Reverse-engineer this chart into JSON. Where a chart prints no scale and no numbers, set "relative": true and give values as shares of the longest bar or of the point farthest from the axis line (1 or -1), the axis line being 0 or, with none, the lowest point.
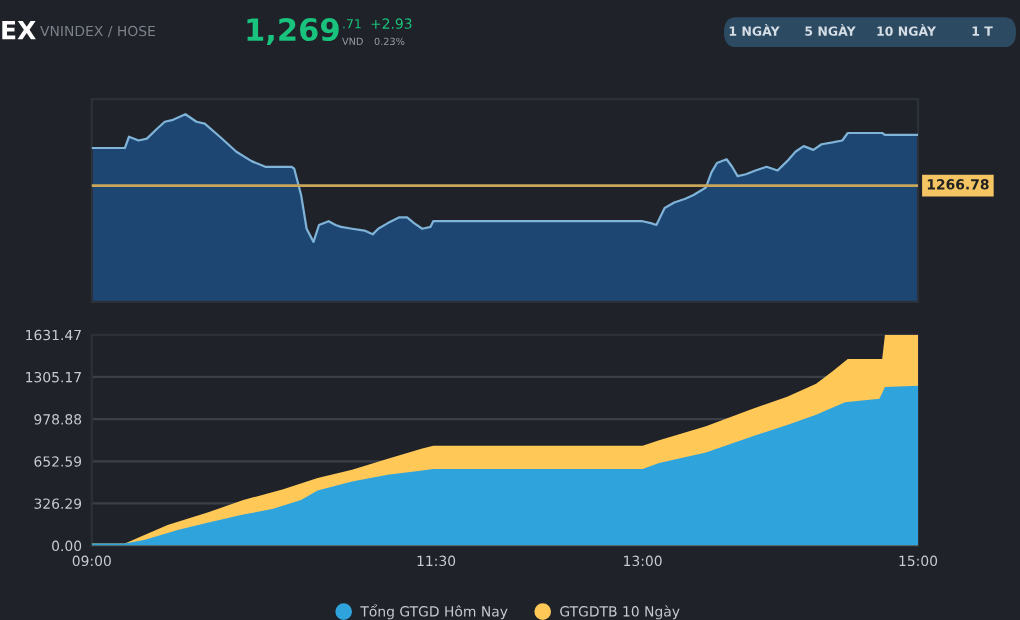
{
  "chart_data": [
    {
      "type": "other",
      "title": "EX",
      "subtitle": "VNINDEX / HOSE",
      "annotations": [
        "1,269",
        ".71",
        "VND",
        "+2.93",
        "0.23%",
        "1 NGÀY",
        "5 NGÀY",
        "10 NGÀY",
        "1 T"
      ]
    },
    {
      "type": "area",
      "relative": true,
      "xlim": [
        9,
        15
      ],
      "grid": false,
      "legend": false,
      "annotations": [
        "1266.78"
      ],
      "series": [
        {
          "color": "#7fb3d8",
          "x": [
            9.0,
            9.24,
            9.27,
            9.34,
            9.4,
            9.47,
            9.53,
            9.59,
            9.68,
            9.76,
            9.82,
            9.93,
            10.05,
            10.16,
            10.26,
            10.37,
            10.45,
            10.47,
            10.52,
            10.56,
            10.61,
            10.65,
            10.72,
            10.77,
            10.81,
            10.89,
            10.98,
            11.04,
            11.08,
            11.15,
            11.23,
            11.29,
            11.34,
            11.4,
            11.46,
            11.48,
            13.0,
            13.06,
            13.1,
            13.16,
            13.23,
            13.31,
            13.37,
            13.46,
            13.5,
            13.54,
            13.61,
            13.65,
            13.69,
            13.75,
            13.82,
            13.9,
            13.98,
            14.05,
            14.11,
            14.17,
            14.24,
            14.3,
            14.38,
            14.45,
            14.49,
            14.74,
            14.76,
            15.0
          ],
          "values": [
            0.82,
            0.82,
            0.88,
            0.86,
            0.87,
            0.92,
            0.96,
            0.97,
            1.0,
            0.96,
            0.95,
            0.88,
            0.8,
            0.75,
            0.72,
            0.72,
            0.72,
            0.71,
            0.57,
            0.39,
            0.32,
            0.41,
            0.43,
            0.41,
            0.4,
            0.39,
            0.38,
            0.36,
            0.39,
            0.42,
            0.45,
            0.45,
            0.42,
            0.39,
            0.4,
            0.43,
            0.43,
            0.42,
            0.41,
            0.5,
            0.53,
            0.55,
            0.57,
            0.61,
            0.69,
            0.74,
            0.76,
            0.72,
            0.67,
            0.68,
            0.7,
            0.72,
            0.7,
            0.75,
            0.8,
            0.83,
            0.81,
            0.84,
            0.85,
            0.86,
            0.9,
            0.9,
            0.89,
            0.89
          ]
        }
      ],
      "ref_lines": [
        {
          "axis": "y",
          "value": 0.62,
          "color": "#c9a75a"
        }
      ]
    },
    {
      "type": "area",
      "xlim": [
        9,
        15
      ],
      "ylim": [
        0,
        1631.47
      ],
      "grid": "y",
      "legend": "bottom",
      "xticks": [
        {
          "value": 9,
          "label": "09:00"
        },
        {
          "value": 11.5,
          "label": "11:30"
        },
        {
          "value": 13,
          "label": "13:00"
        },
        {
          "value": 15,
          "label": "15:00"
        }
      ],
      "yticks": [
        {
          "value": 0,
          "label": "0.00"
        },
        326.29,
        652.59,
        978.88,
        1305.17,
        1631.47
      ],
      "series": [
        {
          "name": "Tổng GTGD Hôm Nay",
          "color": "#2fa3dc",
          "x": [
            9.0,
            9.24,
            9.38,
            9.63,
            9.84,
            10.1,
            10.31,
            10.52,
            10.64,
            10.89,
            11.15,
            11.4,
            11.48,
            13.0,
            13.12,
            13.46,
            13.79,
            14.05,
            14.26,
            14.47,
            14.72,
            14.76,
            15.0
          ],
          "values": [
            16,
            16,
            43,
            123,
            176,
            240,
            283,
            352,
            427,
            496,
            549,
            581,
            592,
            592,
            640,
            720,
            843,
            933,
            1013,
            1109,
            1136,
            1227,
            1237
          ]
        },
        {
          "name": "GTGDTB 10 Ngày",
          "color": "#ffc857",
          "x": [
            9.0,
            9.24,
            9.55,
            9.84,
            10.1,
            10.39,
            10.64,
            10.89,
            11.15,
            11.4,
            11.48,
            13.0,
            13.12,
            13.46,
            13.79,
            14.05,
            14.26,
            14.38,
            14.49,
            14.74,
            14.76,
            15.0
          ],
          "values": [
            16,
            16,
            160,
            256,
            352,
            437,
            523,
            587,
            672,
            752,
            773,
            773,
            816,
            923,
            1056,
            1152,
            1253,
            1349,
            1445,
            1445,
            1631,
            1631
          ]
        }
      ]
    }
  ]
}
